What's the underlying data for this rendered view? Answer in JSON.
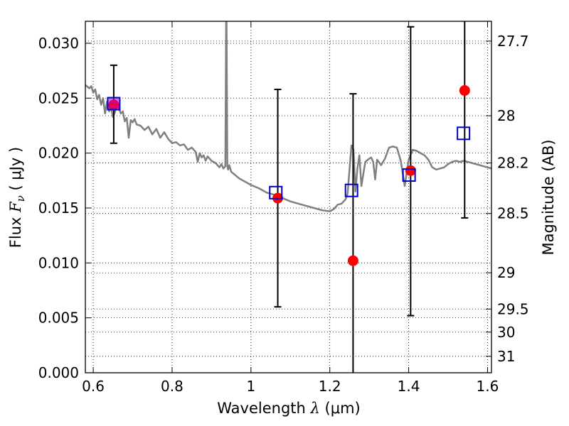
{
  "chart_data": {
    "type": "scatter",
    "title": "",
    "xlabel_text": "Wavelength",
    "xlabel_symbol": "λ",
    "xlabel_unit": "(μm)",
    "ylabel_text": "Flux",
    "ylabel_symbol": "F",
    "ylabel_subscript": "ν",
    "ylabel_unit": "( μJy )",
    "y2label": "Magnitude (AB)",
    "xlim": [
      0.58,
      1.61
    ],
    "ylim": [
      0.0,
      0.032
    ],
    "grid": true,
    "x_ticks": [
      {
        "value": 0.6,
        "label": "0.6"
      },
      {
        "value": 0.8,
        "label": "0.8"
      },
      {
        "value": 1.0,
        "label": "1"
      },
      {
        "value": 1.2,
        "label": "1.2"
      },
      {
        "value": 1.4,
        "label": "1.4"
      },
      {
        "value": 1.6,
        "label": "1.6"
      }
    ],
    "y_ticks": [
      {
        "value": 0.0,
        "label": "0.000"
      },
      {
        "value": 0.005,
        "label": "0.005"
      },
      {
        "value": 0.01,
        "label": "0.010"
      },
      {
        "value": 0.015,
        "label": "0.015"
      },
      {
        "value": 0.02,
        "label": "0.020"
      },
      {
        "value": 0.025,
        "label": "0.025"
      },
      {
        "value": 0.03,
        "label": "0.030"
      }
    ],
    "y2_ticks": [
      {
        "flux": 0.0302,
        "label": "27.7"
      },
      {
        "flux": 0.0234,
        "label": "28"
      },
      {
        "flux": 0.0191,
        "label": "28.2"
      },
      {
        "flux": 0.0145,
        "label": "28.5"
      },
      {
        "flux": 0.0091,
        "label": "29"
      },
      {
        "flux": 0.0058,
        "label": "29.5"
      },
      {
        "flux": 0.0037,
        "label": "30"
      },
      {
        "flux": 0.0015,
        "label": "31"
      }
    ],
    "model_spectrum": {
      "color": "#808080",
      "x": [
        0.58,
        0.59,
        0.595,
        0.6,
        0.605,
        0.61,
        0.615,
        0.62,
        0.625,
        0.63,
        0.635,
        0.64,
        0.645,
        0.65,
        0.655,
        0.66,
        0.665,
        0.67,
        0.675,
        0.68,
        0.685,
        0.69,
        0.695,
        0.7,
        0.705,
        0.71,
        0.72,
        0.73,
        0.74,
        0.75,
        0.76,
        0.77,
        0.78,
        0.79,
        0.8,
        0.81,
        0.82,
        0.83,
        0.84,
        0.85,
        0.86,
        0.865,
        0.87,
        0.875,
        0.88,
        0.885,
        0.89,
        0.9,
        0.91,
        0.92,
        0.925,
        0.93,
        0.935,
        0.936,
        0.937,
        0.938,
        0.939,
        0.94,
        0.942,
        0.945,
        0.95,
        0.96,
        0.97,
        0.98,
        1.0,
        1.02,
        1.04,
        1.06,
        1.08,
        1.1,
        1.12,
        1.14,
        1.16,
        1.18,
        1.2,
        1.21,
        1.22,
        1.23,
        1.24,
        1.245,
        1.25,
        1.255,
        1.26,
        1.265,
        1.27,
        1.275,
        1.28,
        1.29,
        1.3,
        1.305,
        1.31,
        1.315,
        1.32,
        1.33,
        1.34,
        1.35,
        1.36,
        1.37,
        1.38,
        1.39,
        1.4,
        1.41,
        1.42,
        1.43,
        1.44,
        1.45,
        1.46,
        1.47,
        1.48,
        1.49,
        1.5,
        1.51,
        1.52,
        1.53,
        1.54,
        1.55,
        1.56,
        1.57,
        1.58,
        1.59,
        1.6,
        1.61
      ],
      "y": [
        0.0262,
        0.0259,
        0.0261,
        0.0255,
        0.0258,
        0.0249,
        0.0253,
        0.0244,
        0.025,
        0.0236,
        0.0247,
        0.0238,
        0.0242,
        0.0233,
        0.0237,
        0.0244,
        0.0241,
        0.0236,
        0.0238,
        0.0229,
        0.0232,
        0.0214,
        0.023,
        0.0228,
        0.0231,
        0.0226,
        0.0225,
        0.0221,
        0.0224,
        0.0217,
        0.0222,
        0.0214,
        0.0219,
        0.0213,
        0.0209,
        0.021,
        0.0207,
        0.0208,
        0.0203,
        0.0205,
        0.0201,
        0.0192,
        0.02,
        0.0196,
        0.0198,
        0.0193,
        0.0197,
        0.0193,
        0.0191,
        0.0187,
        0.019,
        0.0186,
        0.0188,
        0.025,
        0.032,
        0.032,
        0.026,
        0.0188,
        0.0185,
        0.0189,
        0.0183,
        0.018,
        0.0177,
        0.0175,
        0.0171,
        0.0168,
        0.0164,
        0.0162,
        0.0159,
        0.0156,
        0.0154,
        0.0152,
        0.015,
        0.0148,
        0.0147,
        0.0149,
        0.0153,
        0.0154,
        0.0158,
        0.0163,
        0.0185,
        0.0207,
        0.0203,
        0.0165,
        0.0186,
        0.0198,
        0.017,
        0.0192,
        0.0195,
        0.0196,
        0.0192,
        0.0176,
        0.0194,
        0.0189,
        0.0195,
        0.0205,
        0.0206,
        0.0205,
        0.0193,
        0.017,
        0.0194,
        0.0203,
        0.0202,
        0.02,
        0.0198,
        0.0194,
        0.0187,
        0.0185,
        0.0186,
        0.0187,
        0.019,
        0.0192,
        0.0193,
        0.0192,
        0.0193,
        0.0192,
        0.0191,
        0.019,
        0.0189,
        0.0188,
        0.0187,
        0.0186
      ]
    },
    "error_bars": [
      {
        "x": 0.652,
        "low": 0.0209,
        "high": 0.028
      },
      {
        "x": 1.068,
        "low": 0.006,
        "high": 0.0258
      },
      {
        "x": 1.259,
        "low": 0.0,
        "high": 0.0254
      },
      {
        "x": 1.405,
        "low": 0.0052,
        "high": 0.0315
      },
      {
        "x": 1.542,
        "low": 0.0141,
        "high": 0.032
      }
    ],
    "observed_points": {
      "color": "#ff0000",
      "points": [
        {
          "x": 0.652,
          "y": 0.0244
        },
        {
          "x": 1.068,
          "y": 0.0159
        },
        {
          "x": 1.259,
          "y": 0.0102
        },
        {
          "x": 1.405,
          "y": 0.0184
        },
        {
          "x": 1.542,
          "y": 0.0257
        }
      ]
    },
    "model_points": {
      "color": "#0000cc",
      "points": [
        {
          "x": 0.652,
          "y": 0.0245
        },
        {
          "x": 1.063,
          "y": 0.0164
        },
        {
          "x": 1.255,
          "y": 0.0166
        },
        {
          "x": 1.401,
          "y": 0.018
        },
        {
          "x": 1.539,
          "y": 0.0218
        }
      ]
    }
  }
}
